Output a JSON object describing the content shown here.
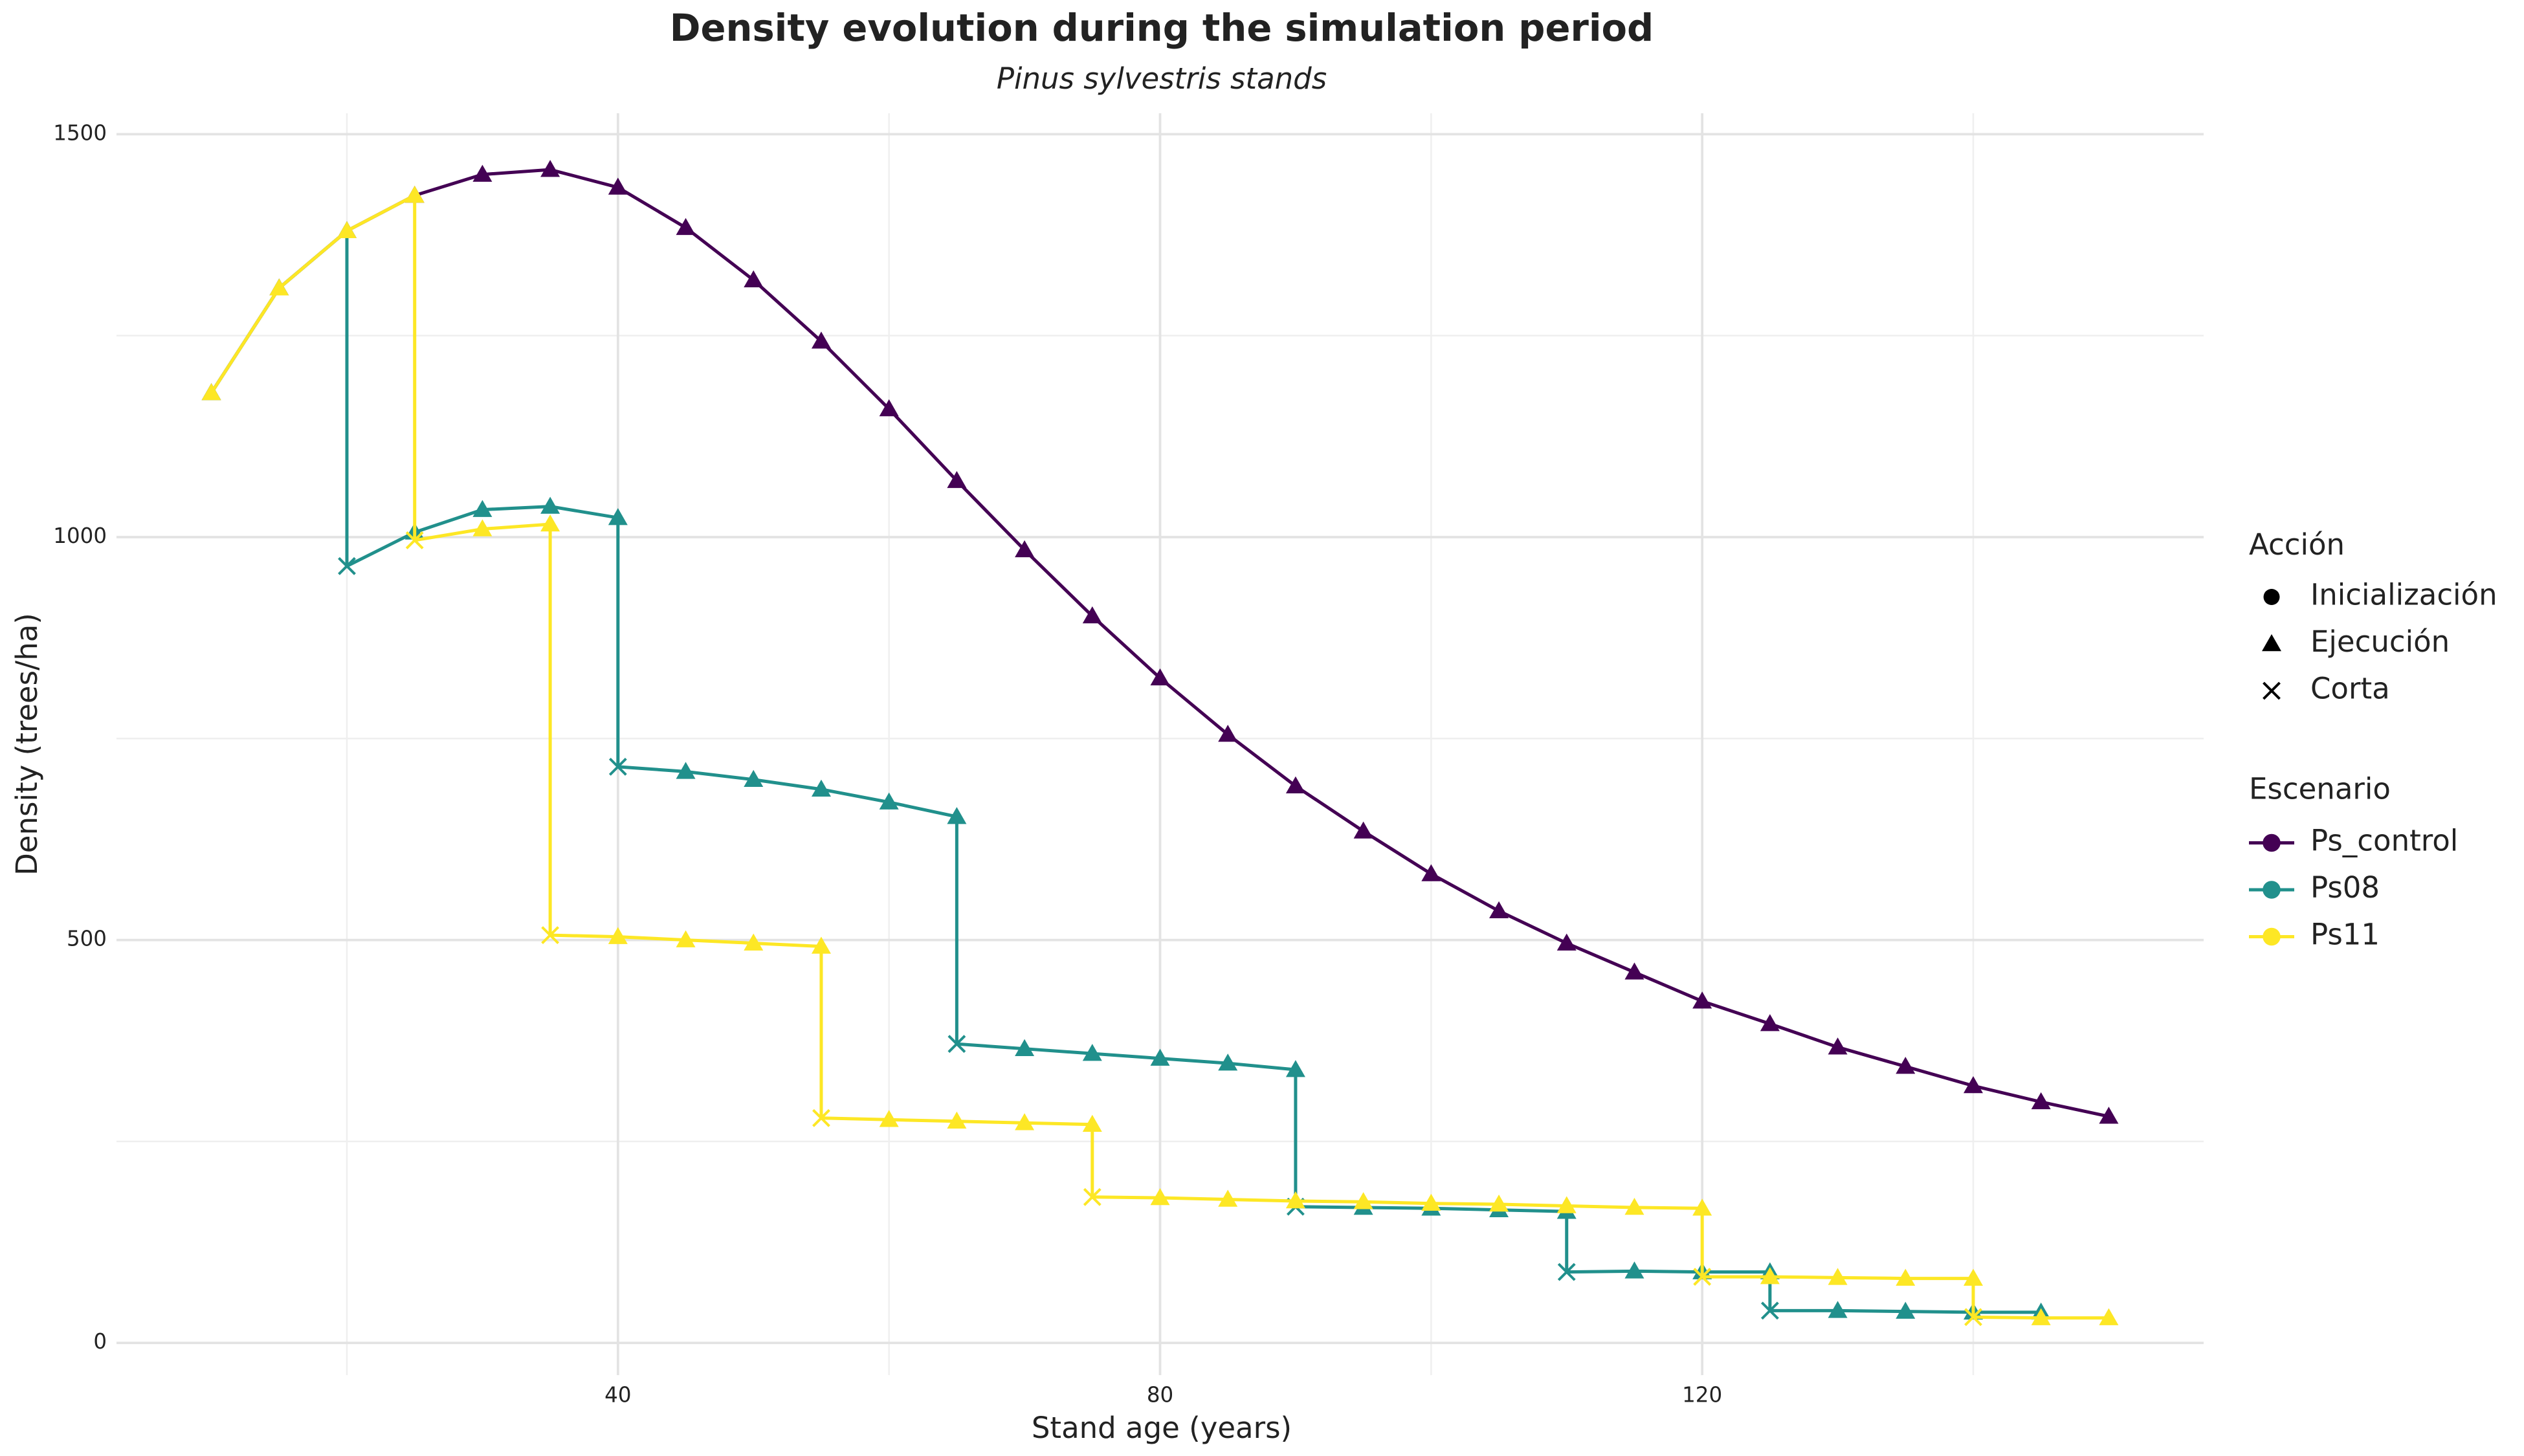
{
  "chart_data": {
    "type": "line",
    "title": "Density evolution during the simulation period",
    "subtitle": "Pinus sylvestris stands",
    "x_label": "Stand age (years)",
    "y_label": "Density (trees/ha)",
    "xlim": [
      3,
      157
    ],
    "xticks": [
      40,
      80,
      120
    ],
    "ylim": [
      -40,
      1526
    ],
    "yticks": [
      0,
      500,
      1000,
      1500
    ],
    "grid": true,
    "shape_legend": {
      "title": "Acción",
      "entries": [
        {
          "name": "Inicialización",
          "shape": "circle"
        },
        {
          "name": "Ejecución",
          "shape": "triangle"
        },
        {
          "name": "Corta",
          "shape": "cross"
        }
      ]
    },
    "color_legend_title": "Escenario",
    "series": [
      {
        "name": "Ps_control",
        "color": "#440154",
        "x": [
          10,
          15,
          20,
          25,
          30,
          35,
          40,
          45,
          50,
          55,
          60,
          65,
          70,
          75,
          80,
          85,
          90,
          95,
          100,
          105,
          110,
          115,
          120,
          125,
          130,
          135,
          140,
          145,
          150
        ],
        "values": [
          1179,
          1309,
          1380,
          1424,
          1450,
          1456,
          1434,
          1384,
          1319,
          1243,
          1159,
          1070,
          984,
          902,
          825,
          755,
          691,
          635,
          582,
          536,
          496,
          460,
          424,
          396,
          367,
          343,
          319,
          299,
          281
        ],
        "actions": [
          "Ejecución",
          "Ejecución",
          "Ejecución",
          "Ejecución",
          "Ejecución",
          "Ejecución",
          "Ejecución",
          "Ejecución",
          "Ejecución",
          "Ejecución",
          "Ejecución",
          "Ejecución",
          "Ejecución",
          "Ejecución",
          "Ejecución",
          "Ejecución",
          "Ejecución",
          "Ejecución",
          "Ejecución",
          "Ejecución",
          "Ejecución",
          "Ejecución",
          "Ejecución",
          "Ejecución",
          "Ejecución",
          "Ejecución",
          "Ejecución",
          "Ejecución",
          "Ejecución"
        ]
      },
      {
        "name": "Ps08",
        "color": "#21908C",
        "x": [
          10,
          15,
          20,
          20,
          25,
          30,
          35,
          40,
          40,
          45,
          50,
          55,
          60,
          65,
          65,
          70,
          75,
          80,
          85,
          90,
          90,
          95,
          100,
          105,
          110,
          110,
          115,
          120,
          125,
          125,
          130,
          135,
          140,
          145
        ],
        "values": [
          1179,
          1309,
          1380,
          964,
          1006,
          1034,
          1038,
          1024,
          715,
          709,
          699,
          687,
          671,
          653,
          371,
          365,
          359,
          353,
          347,
          339,
          169,
          168,
          167,
          165,
          163,
          88,
          89,
          88,
          88,
          40,
          40,
          39,
          38,
          38
        ],
        "actions": [
          "Ejecución",
          "Ejecución",
          "Ejecución",
          "Corta",
          "Ejecución",
          "Ejecución",
          "Ejecución",
          "Ejecución",
          "Corta",
          "Ejecución",
          "Ejecución",
          "Ejecución",
          "Ejecución",
          "Ejecución",
          "Corta",
          "Ejecución",
          "Ejecución",
          "Ejecución",
          "Ejecución",
          "Ejecución",
          "Corta",
          "Ejecución",
          "Ejecución",
          "Ejecución",
          "Ejecución",
          "Corta",
          "Ejecución",
          "Ejecución",
          "Ejecución",
          "Corta",
          "Ejecución",
          "Ejecución",
          "Ejecución",
          "Ejecución"
        ]
      },
      {
        "name": "Ps11",
        "color": "#FDE725",
        "x": [
          10,
          15,
          20,
          25,
          25,
          30,
          35,
          35,
          40,
          45,
          50,
          55,
          55,
          60,
          65,
          70,
          75,
          75,
          80,
          85,
          90,
          95,
          100,
          105,
          110,
          115,
          120,
          120,
          125,
          130,
          135,
          140,
          140,
          145,
          150
        ],
        "values": [
          1179,
          1309,
          1380,
          1424,
          996,
          1010,
          1016,
          506,
          504,
          500,
          496,
          492,
          279,
          277,
          275,
          273,
          271,
          181,
          180,
          178,
          176,
          175,
          173,
          172,
          170,
          168,
          167,
          82,
          82,
          81,
          80,
          80,
          32,
          31,
          31
        ],
        "actions": [
          "Ejecución",
          "Ejecución",
          "Ejecución",
          "Ejecución",
          "Corta",
          "Ejecución",
          "Ejecución",
          "Corta",
          "Ejecución",
          "Ejecución",
          "Ejecución",
          "Ejecución",
          "Corta",
          "Ejecución",
          "Ejecución",
          "Ejecución",
          "Ejecución",
          "Corta",
          "Ejecución",
          "Ejecución",
          "Ejecución",
          "Ejecución",
          "Ejecución",
          "Ejecución",
          "Ejecución",
          "Ejecución",
          "Ejecución",
          "Corta",
          "Ejecución",
          "Ejecución",
          "Ejecución",
          "Ejecución",
          "Corta",
          "Ejecución",
          "Ejecución"
        ]
      }
    ]
  }
}
